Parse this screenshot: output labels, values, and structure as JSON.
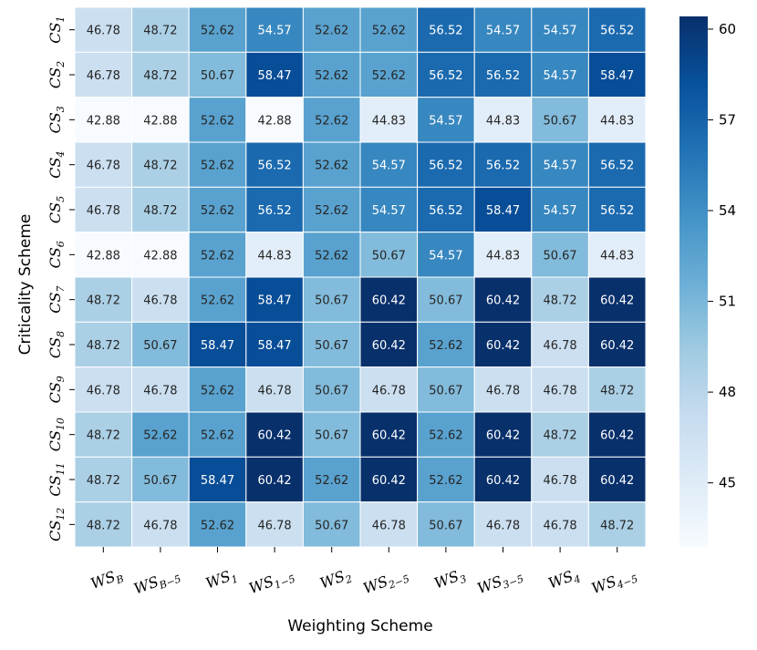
{
  "chart_data": {
    "type": "heatmap",
    "title": "",
    "xlabel": "Weighting Scheme",
    "ylabel": "Criticality Scheme",
    "x_categories": [
      {
        "base": "WS",
        "sub": "B"
      },
      {
        "base": "WS",
        "sub": "B−5"
      },
      {
        "base": "WS",
        "sub": "1"
      },
      {
        "base": "WS",
        "sub": "1−5"
      },
      {
        "base": "WS",
        "sub": "2"
      },
      {
        "base": "WS",
        "sub": "2−5"
      },
      {
        "base": "WS",
        "sub": "3"
      },
      {
        "base": "WS",
        "sub": "3−5"
      },
      {
        "base": "WS",
        "sub": "4"
      },
      {
        "base": "WS",
        "sub": "4−5"
      }
    ],
    "y_categories": [
      {
        "base": "CS",
        "sub": "1"
      },
      {
        "base": "CS",
        "sub": "2"
      },
      {
        "base": "CS",
        "sub": "3"
      },
      {
        "base": "CS",
        "sub": "4"
      },
      {
        "base": "CS",
        "sub": "5"
      },
      {
        "base": "CS",
        "sub": "6"
      },
      {
        "base": "CS",
        "sub": "7"
      },
      {
        "base": "CS",
        "sub": "8"
      },
      {
        "base": "CS",
        "sub": "9"
      },
      {
        "base": "CS",
        "sub": "10"
      },
      {
        "base": "CS",
        "sub": "11"
      },
      {
        "base": "CS",
        "sub": "12"
      }
    ],
    "values": [
      [
        "46.78",
        "48.72",
        "52.62",
        "54.57",
        "52.62",
        "52.62",
        "56.52",
        "54.57",
        "54.57",
        "56.52"
      ],
      [
        "46.78",
        "48.72",
        "50.67",
        "58.47",
        "52.62",
        "52.62",
        "56.52",
        "56.52",
        "54.57",
        "58.47"
      ],
      [
        "42.88",
        "42.88",
        "52.62",
        "42.88",
        "52.62",
        "44.83",
        "54.57",
        "44.83",
        "50.67",
        "44.83"
      ],
      [
        "46.78",
        "48.72",
        "52.62",
        "56.52",
        "52.62",
        "54.57",
        "56.52",
        "56.52",
        "54.57",
        "56.52"
      ],
      [
        "46.78",
        "48.72",
        "52.62",
        "56.52",
        "52.62",
        "54.57",
        "56.52",
        "58.47",
        "54.57",
        "56.52"
      ],
      [
        "42.88",
        "42.88",
        "52.62",
        "44.83",
        "52.62",
        "50.67",
        "54.57",
        "44.83",
        "50.67",
        "44.83"
      ],
      [
        "48.72",
        "46.78",
        "52.62",
        "58.47",
        "50.67",
        "60.42",
        "50.67",
        "60.42",
        "48.72",
        "60.42"
      ],
      [
        "48.72",
        "50.67",
        "58.47",
        "58.47",
        "50.67",
        "60.42",
        "52.62",
        "60.42",
        "46.78",
        "60.42"
      ],
      [
        "46.78",
        "46.78",
        "52.62",
        "46.78",
        "50.67",
        "46.78",
        "50.67",
        "46.78",
        "46.78",
        "48.72"
      ],
      [
        "48.72",
        "52.62",
        "52.62",
        "60.42",
        "50.67",
        "60.42",
        "52.62",
        "60.42",
        "48.72",
        "60.42"
      ],
      [
        "48.72",
        "50.67",
        "58.47",
        "60.42",
        "52.62",
        "60.42",
        "52.62",
        "60.42",
        "46.78",
        "60.42"
      ],
      [
        "48.72",
        "46.78",
        "52.62",
        "46.78",
        "50.67",
        "46.78",
        "50.67",
        "46.78",
        "46.78",
        "48.72"
      ]
    ],
    "colorbar": {
      "colormap": "Blues",
      "vmin": 42.88,
      "vmax": 60.42,
      "ticks": [
        {
          "value": 45,
          "label": "45"
        },
        {
          "value": 48,
          "label": "48"
        },
        {
          "value": 51,
          "label": "51"
        },
        {
          "value": 54,
          "label": "54"
        },
        {
          "value": 57,
          "label": "57"
        },
        {
          "value": 60,
          "label": "60"
        }
      ]
    },
    "annotations": true,
    "grid": "white cell borders",
    "legend": "colorbar at right"
  }
}
